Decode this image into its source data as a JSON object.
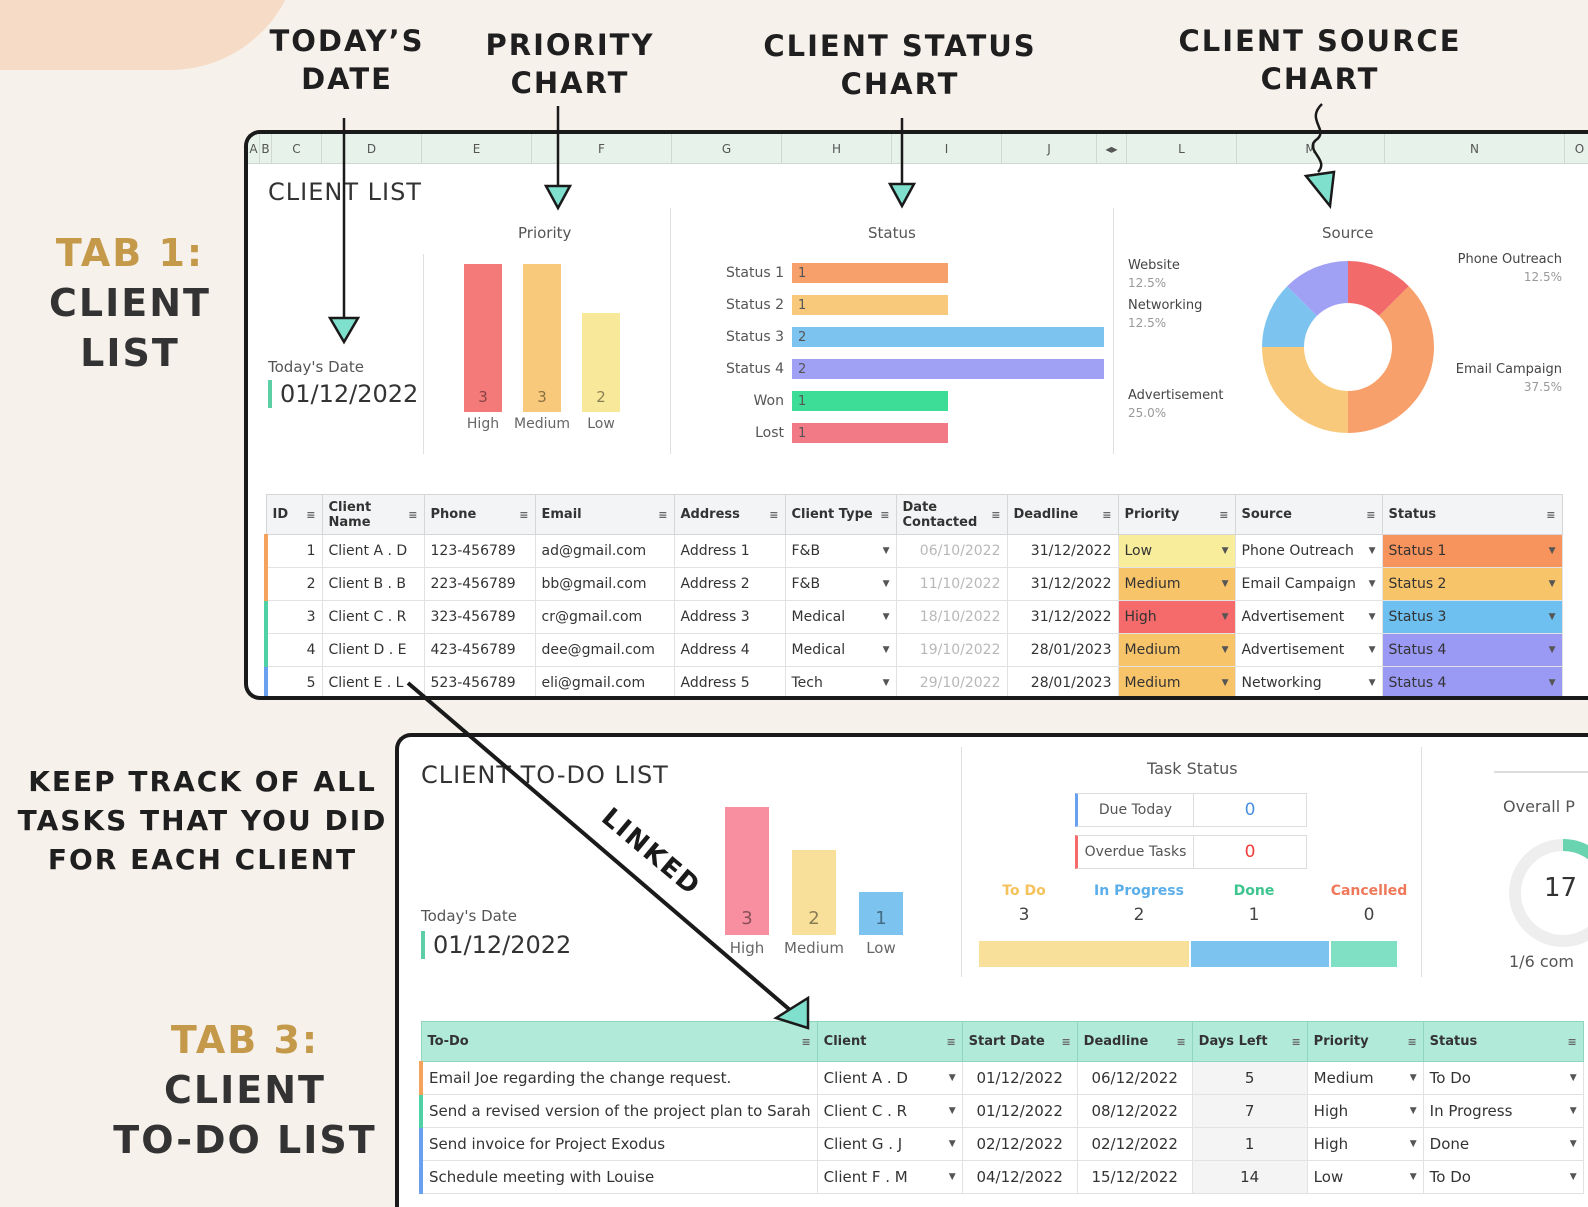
{
  "callouts": {
    "todays_date": [
      "TODAY’S",
      "DATE"
    ],
    "priority_chart": [
      "PRIORITY",
      "CHART"
    ],
    "status_chart": [
      "CLIENT STATUS",
      "CHART"
    ],
    "source_chart": [
      "CLIENT SOURCE",
      "CHART"
    ]
  },
  "tab1": {
    "num": "TAB 1:",
    "line1": "CLIENT",
    "line2": "LIST"
  },
  "tab3": {
    "num": "TAB 3:",
    "line1": "CLIENT",
    "line2": "TO-DO LIST"
  },
  "side_note": [
    "KEEP TRACK OF ALL",
    "TASKS THAT YOU DID",
    "FOR EACH CLIENT"
  ],
  "linked_label": "LINKED",
  "sheet1": {
    "columns": [
      "A",
      "B",
      "C",
      "D",
      "E",
      "F",
      "G",
      "H",
      "I",
      "J",
      "L",
      "M",
      "N",
      "O"
    ],
    "title": "CLIENT LIST",
    "today_label": "Today's Date",
    "today_value": "01/12/2022",
    "priority_title": "Priority",
    "status_title": "Status",
    "source_title": "Source",
    "table_headers": [
      "ID",
      "Client Name",
      "Phone",
      "Email",
      "Address",
      "Client Type",
      "Date Contacted",
      "Deadline",
      "Priority",
      "Source",
      "Status"
    ],
    "rows": [
      {
        "id": "1",
        "name": "Client A . D",
        "phone": "123-456789",
        "email": "ad@gmail.com",
        "address": "Address 1",
        "type": "F&B",
        "contacted": "06/10/2022",
        "deadline": "31/12/2022",
        "priority": "Low",
        "source": "Phone Outreach",
        "status": "Status 1",
        "accent": "#f5a35c"
      },
      {
        "id": "2",
        "name": "Client B . B",
        "phone": "223-456789",
        "email": "bb@gmail.com",
        "address": "Address 2",
        "type": "F&B",
        "contacted": "11/10/2022",
        "deadline": "31/12/2022",
        "priority": "Medium",
        "source": "Email Campaign",
        "status": "Status 2",
        "accent": "#f5a35c"
      },
      {
        "id": "3",
        "name": "Client C . R",
        "phone": "323-456789",
        "email": "cr@gmail.com",
        "address": "Address 3",
        "type": "Medical",
        "contacted": "18/10/2022",
        "deadline": "31/12/2022",
        "priority": "High",
        "source": "Advertisement",
        "status": "Status 3",
        "accent": "#4fd1a5"
      },
      {
        "id": "4",
        "name": "Client D . E",
        "phone": "423-456789",
        "email": "dee@gmail.com",
        "address": "Address 4",
        "type": "Medical",
        "contacted": "19/10/2022",
        "deadline": "28/01/2023",
        "priority": "Medium",
        "source": "Advertisement",
        "status": "Status 4",
        "accent": "#4fd1a5"
      },
      {
        "id": "5",
        "name": "Client E . L",
        "phone": "523-456789",
        "email": "eli@gmail.com",
        "address": "Address 5",
        "type": "Tech",
        "contacted": "29/10/2022",
        "deadline": "28/01/2023",
        "priority": "Medium",
        "source": "Networking",
        "status": "Status 4",
        "accent": "#6aa0f0"
      }
    ]
  },
  "sheet3": {
    "title": "CLIENT TO-DO LIST",
    "today_label": "Today's Date",
    "today_value": "01/12/2022",
    "task_status_title": "Task Status",
    "due_today_label": "Due Today",
    "due_today_value": "0",
    "overdue_label": "Overdue Tasks",
    "overdue_value": "0",
    "status_counts": [
      {
        "label": "To Do",
        "value": "3",
        "color": "#f5c25c"
      },
      {
        "label": "In Progress",
        "value": "2",
        "color": "#5aaeea"
      },
      {
        "label": "Done",
        "value": "1",
        "color": "#3ec48f"
      },
      {
        "label": "Cancelled",
        "value": "0",
        "color": "#f0785a"
      }
    ],
    "overall_label": "Overall P",
    "overall_value": "17",
    "overall_sub": "1/6 com",
    "table_headers": [
      "To-Do",
      "Client",
      "Start Date",
      "Deadline",
      "Days Left",
      "Priority",
      "Status"
    ],
    "rows": [
      {
        "todo": "Email Joe regarding the change request.",
        "client": "Client A . D",
        "start": "01/12/2022",
        "deadline": "06/12/2022",
        "days": "5",
        "priority": "Medium",
        "status": "To Do",
        "accent": "#f5a35c"
      },
      {
        "todo": "Send a revised version of the project plan to Sarah",
        "client": "Client C . R",
        "start": "01/12/2022",
        "deadline": "08/12/2022",
        "days": "7",
        "priority": "High",
        "status": "In Progress",
        "accent": "#4fd1a5"
      },
      {
        "todo": "Send invoice for Project Exodus",
        "client": "Client G . J",
        "start": "02/12/2022",
        "deadline": "02/12/2022",
        "days": "1",
        "priority": "High",
        "status": "Done",
        "accent": "#6aa0f0"
      },
      {
        "todo": "Schedule meeting with Louise",
        "client": "Client F . M",
        "start": "04/12/2022",
        "deadline": "15/12/2022",
        "days": "14",
        "priority": "Low",
        "status": "To Do",
        "accent": "#6aa0f0"
      }
    ]
  },
  "chart_data": [
    {
      "type": "bar",
      "title": "Priority",
      "categories": [
        "High",
        "Medium",
        "Low"
      ],
      "values": [
        3,
        3,
        2
      ],
      "colors": [
        "#f47a7a",
        "#f8c97a",
        "#f7e89a"
      ]
    },
    {
      "type": "bar",
      "orientation": "horizontal",
      "title": "Status",
      "categories": [
        "Status 1",
        "Status 2",
        "Status 3",
        "Status 4",
        "Won",
        "Lost"
      ],
      "values": [
        1,
        1,
        2,
        2,
        1,
        1
      ],
      "colors": [
        "#f7a06b",
        "#f8c97a",
        "#7cc3f0",
        "#a0a0f5",
        "#3ddc97",
        "#f27a86"
      ]
    },
    {
      "type": "pie",
      "title": "Source",
      "categories": [
        "Phone Outreach",
        "Email Campaign",
        "Advertisement",
        "Networking",
        "Website"
      ],
      "values": [
        12.5,
        37.5,
        25.0,
        12.5,
        12.5
      ],
      "labels": [
        "12.5%",
        "37.5%",
        "25.0%",
        "12.5%",
        "12.5%"
      ],
      "colors": [
        "#f26a6a",
        "#f7a06b",
        "#f8c97a",
        "#7cc3f0",
        "#a0a0f5"
      ]
    },
    {
      "type": "bar",
      "title": "",
      "categories": [
        "High",
        "Medium",
        "Low"
      ],
      "values": [
        3,
        2,
        1
      ],
      "colors": [
        "#f78fa0",
        "#f8e09a",
        "#7cc3f0"
      ]
    }
  ],
  "colors": {
    "priority": {
      "Low": "#f7ed9a",
      "Medium": "#f8c46a",
      "High": "#f56a6a"
    },
    "status": {
      "Status 1": "#f7935c",
      "Status 2": "#f8c46a",
      "Status 3": "#6ec0f0",
      "Status 4": "#9a9af5"
    }
  }
}
